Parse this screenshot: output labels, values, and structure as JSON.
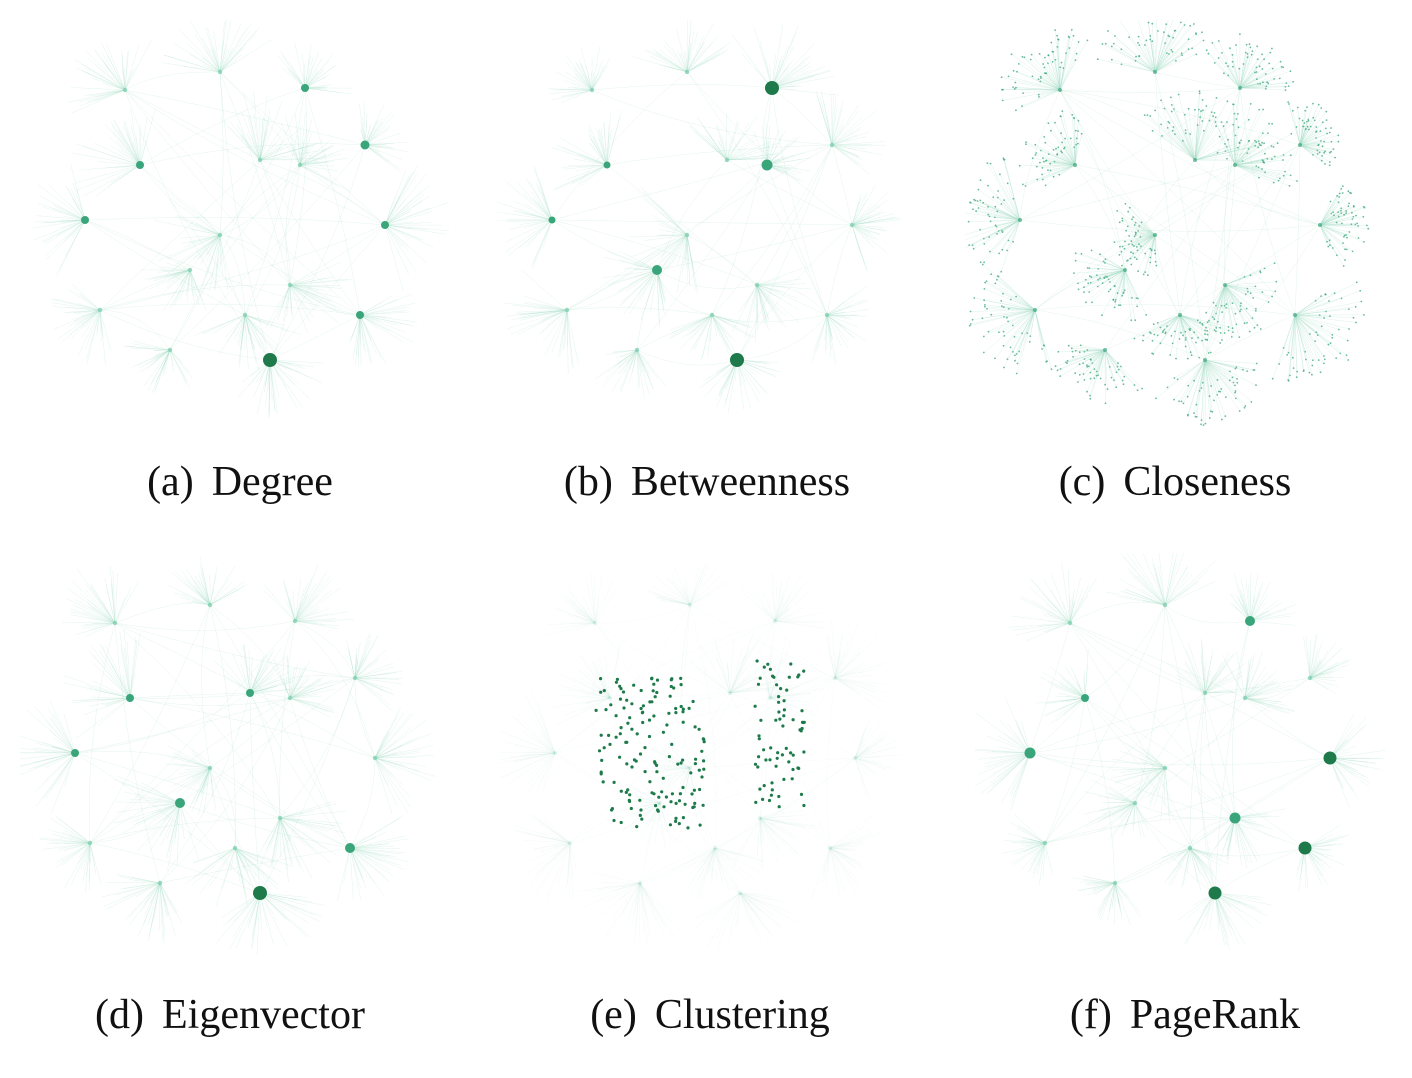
{
  "colors": {
    "node_strong": "#1e7a4a",
    "node_mid": "#3aa57a",
    "node_faint": "#7fcfb0",
    "edge": "#9fd9c2"
  },
  "panels": [
    {
      "letter": "(a)",
      "title": "Degree"
    },
    {
      "letter": "(b)",
      "title": "Betweenness"
    },
    {
      "letter": "(c)",
      "title": "Closeness"
    },
    {
      "letter": "(d)",
      "title": "Eigenvector"
    },
    {
      "letter": "(e)",
      "title": "Clustering"
    },
    {
      "letter": "(f)",
      "title": "PageRank"
    }
  ]
}
